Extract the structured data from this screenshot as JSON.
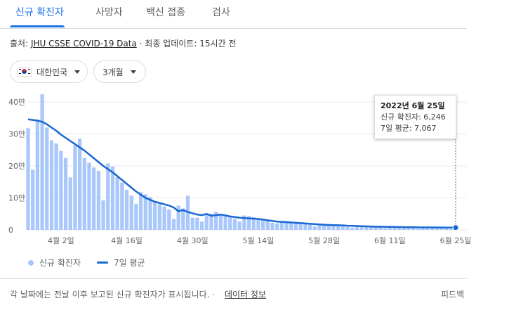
{
  "tabs": [
    {
      "label": "신규 확진자",
      "active": true
    },
    {
      "label": "사망자",
      "active": false
    },
    {
      "label": "백신 접종",
      "active": false
    },
    {
      "label": "검사",
      "active": false
    }
  ],
  "source": {
    "prefix": "출처:",
    "link": "JHU CSSE COVID-19 Data",
    "separator": "·",
    "updated": "최종 업데이트: 15시간 전"
  },
  "filters": {
    "country": "대한민국",
    "country_flag_icon": "south-korea-flag-icon",
    "period": "3개월"
  },
  "tooltip": {
    "date": "2022년 6월 25일",
    "cases_label": "신규 확진자: 6,246",
    "avg_label": "7일 평균: 7,067"
  },
  "legend": {
    "bars_label": "신규 확진자",
    "line_label": "7일 평균"
  },
  "footer": {
    "note": "각 날짜에는 전날 이후 보고된 신규 확진자가 표시됩니다.",
    "separator": "·",
    "data_info_link": "데이터 정보",
    "feedback": "피드백"
  },
  "colors": {
    "accent": "#1a73e8",
    "bars": "#a8c7fa",
    "average_line": "#1967d2"
  },
  "chart_data": {
    "type": "bar",
    "start_date": "2022-03-26",
    "end_date": "2022-06-25",
    "y_tick_labels": [
      "0",
      "10만",
      "20만",
      "30만",
      "40만"
    ],
    "y_ticks": [
      0,
      100000,
      200000,
      300000,
      400000
    ],
    "ylim": [
      0,
      420000
    ],
    "x_tick_labels": [
      "4월 2일",
      "4월 16일",
      "4월 30일",
      "5월 14일",
      "5월 28일",
      "6월 11일",
      "6월 25일"
    ],
    "x_tick_dates": [
      "2022-04-02",
      "2022-04-16",
      "2022-04-30",
      "2022-05-14",
      "2022-05-28",
      "2022-06-11",
      "2022-06-25"
    ],
    "grid": true,
    "legend": "bottom-left",
    "series": [
      {
        "name": "신규 확진자",
        "type": "bar",
        "values": [
          318000,
          188000,
          340000,
          424000,
          320000,
          280000,
          270000,
          247000,
          225000,
          164000,
          265000,
          285000,
          225000,
          210000,
          195000,
          185000,
          92000,
          208000,
          198000,
          165000,
          148000,
          125000,
          107000,
          81000,
          118000,
          111000,
          103000,
          90000,
          80000,
          73000,
          64000,
          34000,
          76000,
          67000,
          107000,
          38000,
          38000,
          26000,
          49000,
          51000,
          56000,
          50000,
          44000,
          40000,
          34000,
          26000,
          45000,
          43000,
          40000,
          36000,
          30000,
          28000,
          22000,
          20000,
          24000,
          28000,
          26000,
          25000,
          23000,
          20000,
          16000,
          11000,
          18000,
          16000,
          15000,
          14000,
          13000,
          12000,
          9000,
          7000,
          12000,
          11000,
          10000,
          11000,
          9000,
          8000,
          5000,
          9000,
          8000,
          8000,
          7000,
          7000,
          6000,
          4000,
          7000,
          7000,
          7000,
          6000,
          6000,
          5000,
          3000,
          6246
        ]
      },
      {
        "name": "7일 평균",
        "type": "line",
        "values": [
          346000,
          344000,
          342000,
          338000,
          330000,
          320000,
          310000,
          298000,
          288000,
          278000,
          268000,
          258000,
          248000,
          236000,
          224000,
          212000,
          200000,
          190000,
          180000,
          168000,
          156000,
          144000,
          132000,
          120000,
          110000,
          100000,
          94000,
          88000,
          84000,
          80000,
          76000,
          70000,
          58000,
          62000,
          56000,
          52000,
          48000,
          46000,
          50000,
          44000,
          46000,
          48000,
          45000,
          42000,
          40000,
          38000,
          37000,
          36000,
          35000,
          34000,
          32000,
          30000,
          28000,
          26000,
          25000,
          24000,
          23000,
          22000,
          21000,
          20000,
          19000,
          18000,
          17000,
          16000,
          15500,
          15000,
          14500,
          14000,
          13000,
          12500,
          12000,
          11500,
          11000,
          10500,
          10000,
          9800,
          9500,
          9200,
          9000,
          8800,
          8600,
          8400,
          8200,
          8000,
          7800,
          7700,
          7600,
          7500,
          7400,
          7300,
          7150,
          7067
        ]
      }
    ]
  }
}
